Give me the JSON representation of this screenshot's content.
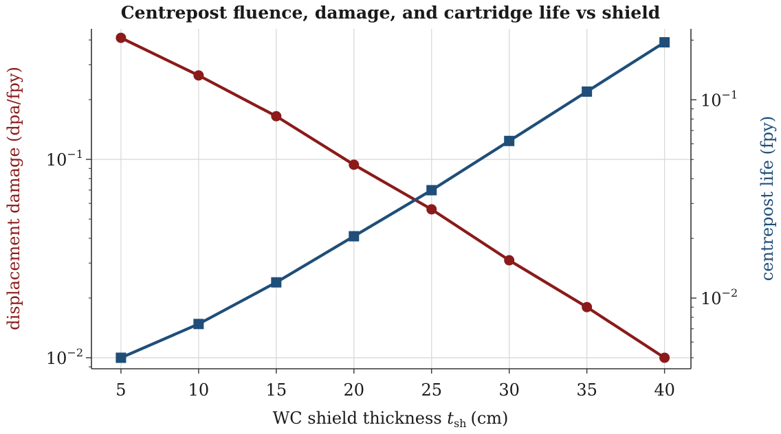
{
  "chart_data": {
    "type": "line",
    "title": "Centrepost fluence, damage, and cartridge life vs shield",
    "xlabel": "WC shield thickness",
    "xlabel_var": "t",
    "xlabel_sub": "sh",
    "xlabel_unit": "(cm)",
    "x": [
      5,
      10,
      15,
      20,
      25,
      30,
      35,
      40
    ],
    "xlim": [
      3.1,
      41.7
    ],
    "xticks": [
      "5",
      "10",
      "15",
      "20",
      "25",
      "30",
      "35",
      "40"
    ],
    "grid": true,
    "colors": {
      "left": "#8b1a1a",
      "right": "#1f4e79"
    },
    "left_axis": {
      "label": "displacement damage (dpa/fpy)",
      "scale": "log",
      "ylim": [
        0.0088,
        0.455
      ],
      "ticks": [
        {
          "value": 0.1,
          "base": "10",
          "exp": "−1"
        },
        {
          "value": 0.01,
          "base": "10",
          "exp": "−2"
        }
      ]
    },
    "right_axis": {
      "label": "centrepost life (fpy)",
      "scale": "log",
      "ylim": [
        0.0044,
        0.228
      ],
      "ticks": [
        {
          "value": 0.1,
          "base": "10",
          "exp": "−1"
        },
        {
          "value": 0.01,
          "base": "10",
          "exp": "−2"
        }
      ]
    },
    "series": [
      {
        "axis": "left",
        "marker": "circle",
        "values": [
          0.41,
          0.265,
          0.165,
          0.094,
          0.056,
          0.031,
          0.018,
          0.01
        ]
      },
      {
        "axis": "right",
        "marker": "square",
        "values": [
          0.005,
          0.0074,
          0.012,
          0.0205,
          0.035,
          0.062,
          0.11,
          0.195
        ]
      }
    ]
  }
}
